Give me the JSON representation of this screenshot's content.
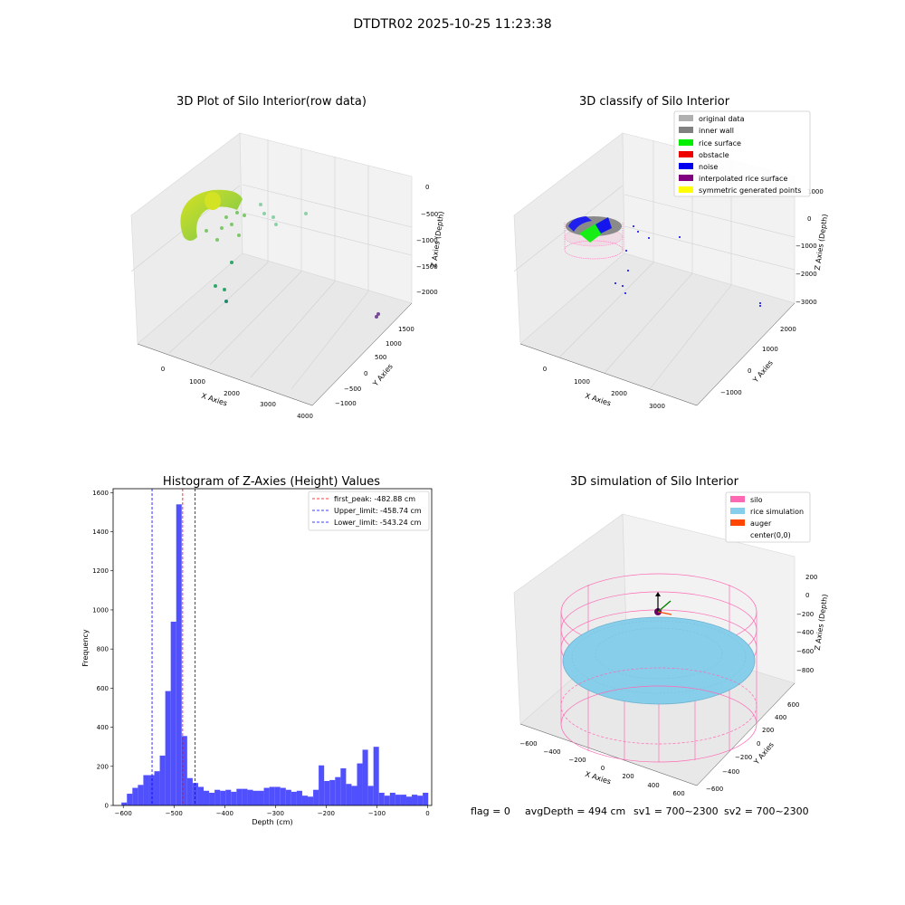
{
  "figure": {
    "title": "DTDTR02 2025-10-25 11:23:38",
    "footer": {
      "flag": "flag = 0",
      "avg_depth": "avgDepth = 494 cm",
      "sv1": "sv1 = 700~2300",
      "sv2": "sv2 = 700~2300"
    }
  },
  "panels": {
    "raw": {
      "title": "3D Plot of Silo Interior(row data)",
      "xlabel": "X Axies",
      "ylabel": "Y Axies",
      "zlabel": "Z Axies (Depth)",
      "xticks": [
        "0",
        "1000",
        "2000",
        "3000",
        "4000"
      ],
      "yticks": [
        "−1000",
        "−500",
        "0",
        "500",
        "1000",
        "1500"
      ],
      "zticks": [
        "0",
        "−500",
        "−1000",
        "−1500",
        "−2000"
      ]
    },
    "classify": {
      "title": "3D classify of Silo Interior",
      "xlabel": "X Axies",
      "ylabel": "Y Axies",
      "zlabel": "Z Axies (Depth)",
      "xticks": [
        "0",
        "1000",
        "2000",
        "3000"
      ],
      "yticks": [
        "−1000",
        "0",
        "1000",
        "2000"
      ],
      "zticks": [
        "1000",
        "0",
        "−1000",
        "−2000",
        "−3000"
      ],
      "legend": [
        {
          "label": "original data",
          "color": "#b0b0b0"
        },
        {
          "label": "inner wall",
          "color": "#808080"
        },
        {
          "label": "rice surface",
          "color": "#00ee00"
        },
        {
          "label": "obstacle",
          "color": "#ee0000"
        },
        {
          "label": "noise",
          "color": "#0000ee"
        },
        {
          "label": "interpolated rice surface",
          "color": "#800080"
        },
        {
          "label": "symmetric generated points",
          "color": "#ffff00"
        }
      ]
    },
    "simulation": {
      "title": "3D simulation of Silo Interior",
      "xlabel": "X Axies",
      "ylabel": "Y Axies",
      "zlabel": "Z Axies (Depth)",
      "xticks": [
        "−600",
        "−400",
        "−200",
        "0",
        "200",
        "400",
        "600"
      ],
      "yticks": [
        "−600",
        "−400",
        "−200",
        "0",
        "200",
        "400",
        "600"
      ],
      "zticks": [
        "200",
        "0",
        "−200",
        "−400",
        "−600",
        "−800"
      ],
      "legend": [
        {
          "label": "silo",
          "color": "#ff69b4"
        },
        {
          "label": "rice simulation",
          "color": "#87ceeb"
        },
        {
          "label": "auger",
          "color": "#ff4500"
        },
        {
          "label": "center(0,0)",
          "color": "#ffffff"
        }
      ]
    }
  },
  "chart_data": {
    "type": "bar",
    "title": "Histogram of Z-Axies (Height) Values",
    "xlabel": "Depth (cm)",
    "ylabel": "Frequency",
    "xlim": [
      -620,
      8
    ],
    "ylim": [
      0,
      1620
    ],
    "bar_color": "#5050ff",
    "bin_width": 10.8,
    "bin_starts": [
      -603.6,
      -592.8,
      -582.0,
      -571.2,
      -560.4,
      -549.6,
      -538.8,
      -528.0,
      -517.2,
      -506.4,
      -495.6,
      -484.8,
      -474.0,
      -463.2,
      -452.4,
      -441.6,
      -430.8,
      -420.0,
      -409.2,
      -398.4,
      -387.6,
      -376.8,
      -366.0,
      -355.2,
      -344.4,
      -333.6,
      -322.8,
      -312.0,
      -301.2,
      -290.4,
      -279.6,
      -268.8,
      -258.0,
      -247.2,
      -236.4,
      -225.6,
      -214.8,
      -204.0,
      -193.2,
      -182.4,
      -171.6,
      -160.8,
      -150.0,
      -139.2,
      -128.4,
      -117.6,
      -106.8,
      -96.0,
      -85.2,
      -74.4,
      -63.6,
      -52.8,
      -42.0,
      -31.2,
      -20.4,
      -9.6
    ],
    "values": [
      15,
      60,
      90,
      105,
      155,
      155,
      175,
      255,
      585,
      940,
      1540,
      355,
      140,
      115,
      95,
      75,
      65,
      80,
      75,
      80,
      70,
      85,
      85,
      80,
      75,
      75,
      90,
      95,
      95,
      90,
      80,
      70,
      75,
      50,
      45,
      80,
      205,
      125,
      130,
      145,
      190,
      110,
      100,
      215,
      285,
      100,
      300,
      65,
      50,
      65,
      55,
      55,
      45,
      55,
      50,
      65
    ],
    "xticks": [
      -600,
      -500,
      -400,
      -300,
      -200,
      -100,
      0
    ],
    "xtick_labels": [
      "−600",
      "−500",
      "−400",
      "−300",
      "−200",
      "−100",
      "0"
    ],
    "yticks": [
      0,
      200,
      400,
      600,
      800,
      1000,
      1200,
      1400,
      1600
    ],
    "ytick_labels": [
      "0",
      "200",
      "400",
      "600",
      "800",
      "1000",
      "1200",
      "1400",
      "1600"
    ],
    "vlines": [
      {
        "x": -482.88,
        "color": "#ff0000",
        "label": "first_peak: -482.88 cm"
      },
      {
        "x": -458.74,
        "color": "#0000ff",
        "label": "Upper_limit: -458.74 cm"
      },
      {
        "x": -543.24,
        "color": "#0000ff",
        "label": "Lower_limit: -543.24 cm"
      }
    ],
    "legend_position": "top-right"
  }
}
